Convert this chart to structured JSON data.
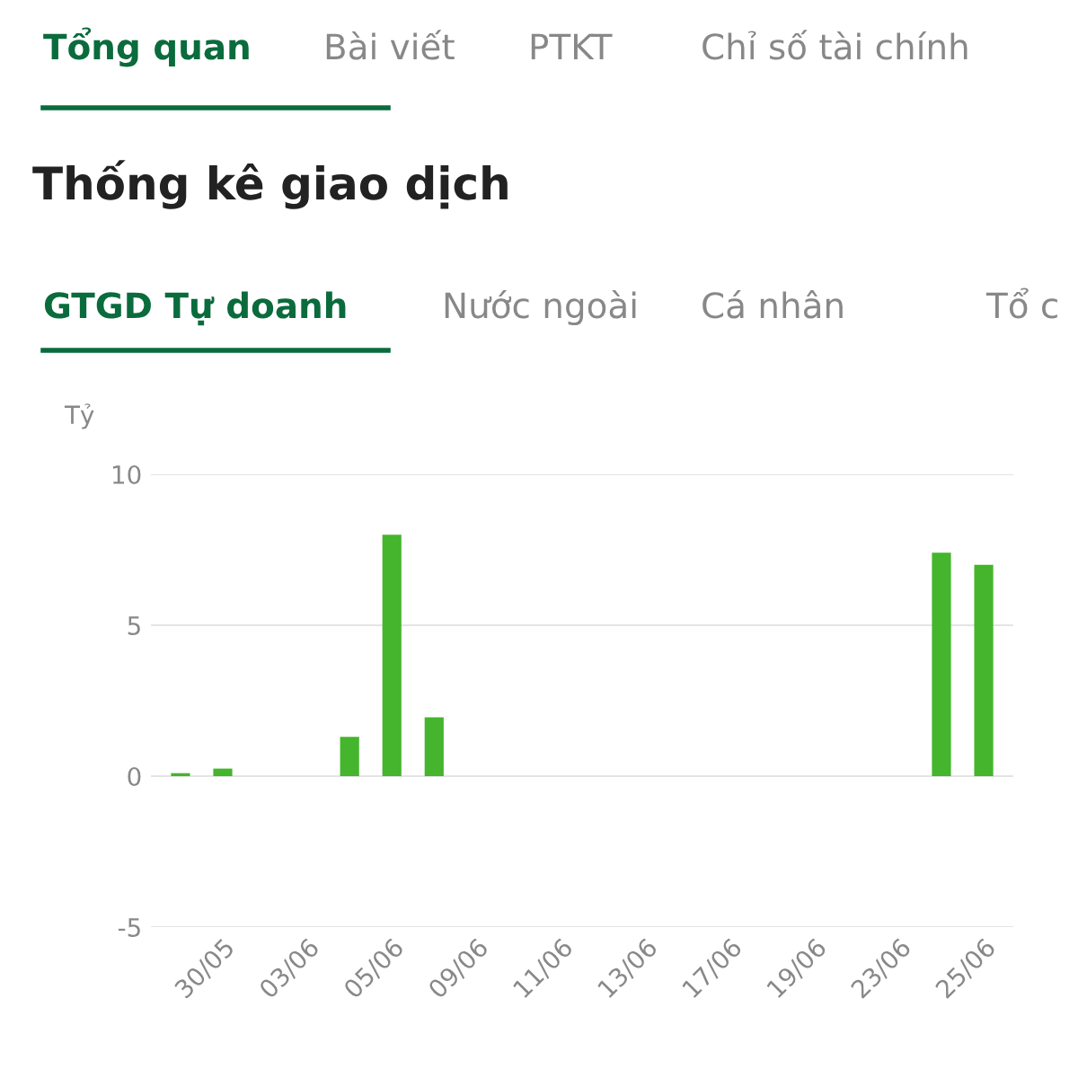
{
  "chart_data": {
    "type": "bar",
    "title": "Thống kê giao dịch",
    "ylabel": "Tỷ",
    "annotations": [
      "Tổng quan",
      "Bài viết",
      "PTKT",
      "Chỉ số tài chính",
      "GTGD Tự doanh",
      "Nước ngoài",
      "Cá nhân",
      "Tổ c"
    ],
    "categories": [
      null,
      "30/05",
      null,
      "03/06",
      null,
      "05/06",
      null,
      "09/06",
      null,
      "11/06",
      null,
      "13/06",
      null,
      "17/06",
      null,
      "19/06",
      null,
      "23/06",
      null,
      "25/06"
    ],
    "values": [
      0.1,
      0.25,
      0,
      0,
      1.3,
      8.0,
      1.95,
      0,
      0,
      0,
      0,
      0,
      0,
      0,
      0,
      0,
      0,
      0,
      7.4,
      7.0
    ],
    "color": "#44b52c",
    "ylim": [
      -5,
      10
    ],
    "yticks": [
      -5,
      0,
      5,
      10
    ],
    "grid": "y"
  }
}
